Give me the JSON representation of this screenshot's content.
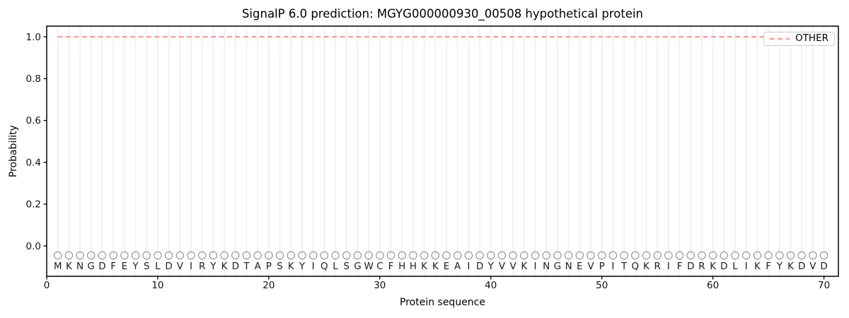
{
  "chart_data": {
    "type": "line",
    "title": "SignalP 6.0 prediction: MGYG000000930_00508 hypothetical protein",
    "xlabel": "Protein sequence",
    "ylabel": "Probability",
    "xlim": [
      0,
      71.3
    ],
    "ylim": [
      -0.145,
      1.051
    ],
    "x_ticks": [
      0,
      10,
      20,
      30,
      40,
      50,
      60,
      70
    ],
    "y_ticks": [
      0,
      0.2,
      0.4,
      0.6,
      0.8,
      1
    ],
    "grid": {
      "vertical_line_per_residue": true,
      "horizontal": false
    },
    "legend": {
      "position": "upper right",
      "entries": [
        "OTHER"
      ]
    },
    "series": [
      {
        "name": "OTHER",
        "line_style": "dashed",
        "color": "#ee8888",
        "x": [
          1,
          70
        ],
        "y": [
          1.0,
          1.0
        ]
      }
    ],
    "sequence": "MKNGDFEYSLDVIRYKDTAPSKYIQLSGWCFHHKKEAIDYVVKINGNEVPITQKRIFDRKDLIKFYKDVD",
    "sequence_length": 70,
    "residue_markers": {
      "shape": "open-circle",
      "color": "#909090",
      "y_value": -0.045
    },
    "sequence_letters_y_value": -0.096,
    "colors": {
      "axis": "#000000",
      "tick_text": "#111111",
      "letter_text": "#222222",
      "grid": "#efefef",
      "other": "#ee8888"
    }
  }
}
